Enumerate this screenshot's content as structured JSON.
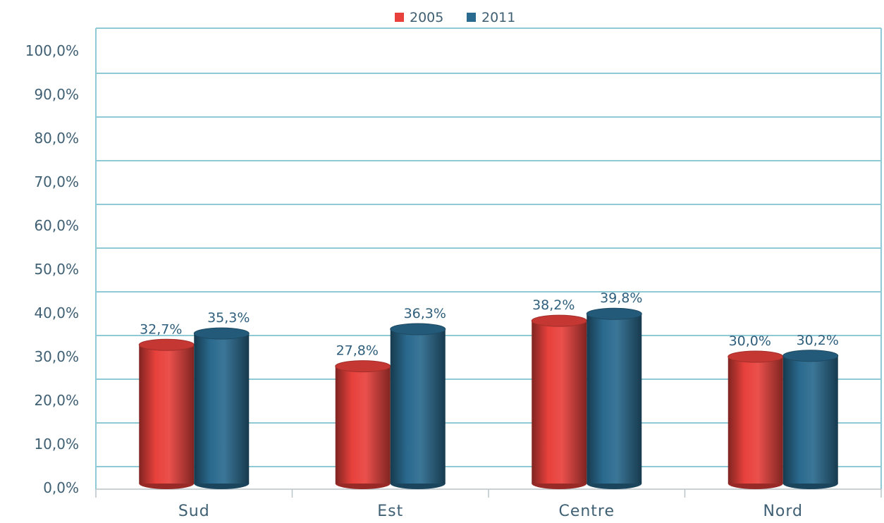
{
  "chart_data": {
    "type": "bar",
    "style": "3d-cylinder",
    "categories": [
      "Sud",
      "Est",
      "Centre",
      "Nord"
    ],
    "series": [
      {
        "name": "2005",
        "color": "#e8413c",
        "values": [
          32.7,
          27.8,
          38.2,
          30.0
        ],
        "labels": [
          "32,7%",
          "27,8%",
          "38,2%",
          "30,0%"
        ]
      },
      {
        "name": "2011",
        "color": "#2a6a8e",
        "values": [
          35.3,
          36.3,
          39.8,
          30.2
        ],
        "labels": [
          "35,3%",
          "36,3%",
          "39,8%",
          "30,2%"
        ]
      }
    ],
    "ylim": [
      0,
      100
    ],
    "yticks": [
      "0,0%",
      "10,0%",
      "20,0%",
      "30,0%",
      "40,0%",
      "50,0%",
      "60,0%",
      "70,0%",
      "80,0%",
      "90,0%",
      "100,0%"
    ],
    "title": "",
    "xlabel": "",
    "ylabel": "",
    "legend_position": "top-center",
    "grid": true,
    "colors": {
      "axis": "#8fc9d6",
      "grid": "#8fc9d6",
      "tick_text": "#3f5f73",
      "label_text": "#2f5f7c"
    }
  }
}
